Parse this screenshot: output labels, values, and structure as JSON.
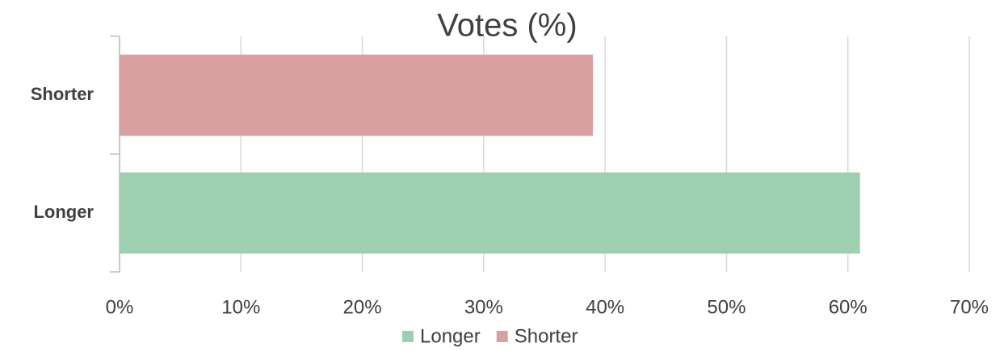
{
  "chart_data": {
    "type": "hbar",
    "title": "Votes (%)",
    "categories": [
      "Longer",
      "Shorter"
    ],
    "series": [
      {
        "name": "Longer",
        "color": "#9fcfb1",
        "values": [
          61,
          null
        ]
      },
      {
        "name": "Shorter",
        "color": "#d9a0a0",
        "values": [
          null,
          39
        ]
      }
    ],
    "xlim": [
      0,
      70
    ],
    "xticks": [
      {
        "value": 0,
        "label": "0%"
      },
      {
        "value": 10,
        "label": "10%"
      },
      {
        "value": 20,
        "label": "20%"
      },
      {
        "value": 30,
        "label": "30%"
      },
      {
        "value": 40,
        "label": "40%"
      },
      {
        "value": 50,
        "label": "50%"
      },
      {
        "value": 60,
        "label": "60%"
      },
      {
        "value": 70,
        "label": "70%"
      }
    ],
    "grid": true,
    "legend": "bottom"
  }
}
